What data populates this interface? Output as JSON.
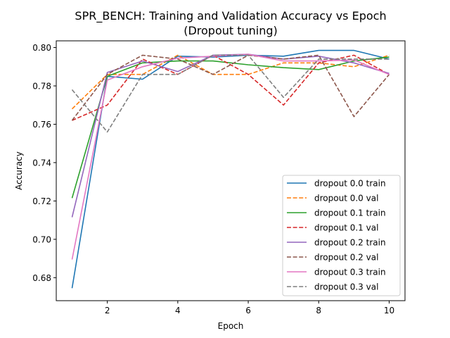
{
  "chart_data": {
    "type": "line",
    "title": "SPR_BENCH: Training and Validation Accuracy vs Epoch",
    "subtitle": "(Dropout tuning)",
    "xlabel": "Epoch",
    "ylabel": "Accuracy",
    "xlim": [
      0.55,
      10.45
    ],
    "ylim": [
      0.668,
      0.8035
    ],
    "x_ticks": [
      2,
      4,
      6,
      8,
      10
    ],
    "y_ticks": [
      0.68,
      0.7,
      0.72,
      0.74,
      0.76,
      0.78,
      0.8
    ],
    "y_tick_labels": [
      "0.68",
      "0.70",
      "0.72",
      "0.74",
      "0.76",
      "0.78",
      "0.80"
    ],
    "grid": false,
    "legend_position": "lower-right",
    "x": [
      1,
      2,
      3,
      4,
      5,
      6,
      7,
      8,
      9,
      10
    ],
    "series": [
      {
        "name": "dropout 0.0 train",
        "color": "#1f77b4",
        "dash": "solid",
        "values": [
          0.6745,
          0.785,
          0.7835,
          0.7955,
          0.795,
          0.796,
          0.7955,
          0.7985,
          0.7985,
          0.794
        ]
      },
      {
        "name": "dropout 0.0 val",
        "color": "#ff7f0e",
        "dash": "dashed",
        "values": [
          0.768,
          0.786,
          0.786,
          0.796,
          0.786,
          0.786,
          0.792,
          0.792,
          0.79,
          0.796
        ]
      },
      {
        "name": "dropout 0.1 train",
        "color": "#2ca02c",
        "dash": "solid",
        "values": [
          0.7215,
          0.785,
          0.792,
          0.793,
          0.793,
          0.791,
          0.7895,
          0.7885,
          0.793,
          0.795
        ]
      },
      {
        "name": "dropout 0.1 val",
        "color": "#d62728",
        "dash": "dashed",
        "values": [
          0.762,
          0.77,
          0.794,
          0.786,
          0.796,
          0.786,
          0.77,
          0.792,
          0.796,
          0.786
        ]
      },
      {
        "name": "dropout 0.2 train",
        "color": "#9467bd",
        "dash": "solid",
        "values": [
          0.7115,
          0.787,
          0.793,
          0.7875,
          0.796,
          0.7965,
          0.794,
          0.7955,
          0.792,
          0.7865
        ]
      },
      {
        "name": "dropout 0.2 val",
        "color": "#8c564b",
        "dash": "dashed",
        "values": [
          0.762,
          0.786,
          0.796,
          0.794,
          0.786,
          0.796,
          0.794,
          0.796,
          0.764,
          0.786
        ]
      },
      {
        "name": "dropout 0.3 train",
        "color": "#e377c2",
        "dash": "solid",
        "values": [
          0.6895,
          0.783,
          0.79,
          0.7945,
          0.7955,
          0.7965,
          0.793,
          0.793,
          0.7935,
          0.786
        ]
      },
      {
        "name": "dropout 0.3 val",
        "color": "#7f7f7f",
        "dash": "dashed",
        "values": [
          0.778,
          0.756,
          0.786,
          0.786,
          0.796,
          0.796,
          0.774,
          0.794,
          0.794,
          0.794
        ]
      }
    ]
  }
}
